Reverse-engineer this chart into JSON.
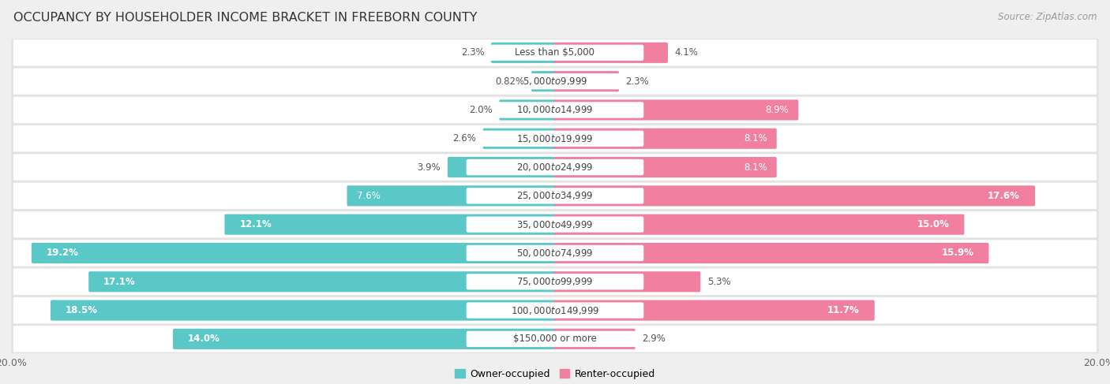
{
  "title": "OCCUPANCY BY HOUSEHOLDER INCOME BRACKET IN FREEBORN COUNTY",
  "source": "Source: ZipAtlas.com",
  "categories": [
    "Less than $5,000",
    "$5,000 to $9,999",
    "$10,000 to $14,999",
    "$15,000 to $19,999",
    "$20,000 to $24,999",
    "$25,000 to $34,999",
    "$35,000 to $49,999",
    "$50,000 to $74,999",
    "$75,000 to $99,999",
    "$100,000 to $149,999",
    "$150,000 or more"
  ],
  "owner_values": [
    2.3,
    0.82,
    2.0,
    2.6,
    3.9,
    7.6,
    12.1,
    19.2,
    17.1,
    18.5,
    14.0
  ],
  "renter_values": [
    4.1,
    2.3,
    8.9,
    8.1,
    8.1,
    17.6,
    15.0,
    15.9,
    5.3,
    11.7,
    2.9
  ],
  "owner_color": "#5bc8c8",
  "renter_color": "#f07fa0",
  "owner_label": "Owner-occupied",
  "renter_label": "Renter-occupied",
  "axis_max": 20.0,
  "background_color": "#efefef",
  "row_bg_color": "#e8e8e8",
  "bar_bg_color": "#f8f8f8",
  "title_fontsize": 11.5,
  "source_fontsize": 8.5,
  "bar_label_fontsize": 8.5,
  "category_fontsize": 8.5,
  "legend_fontsize": 9
}
